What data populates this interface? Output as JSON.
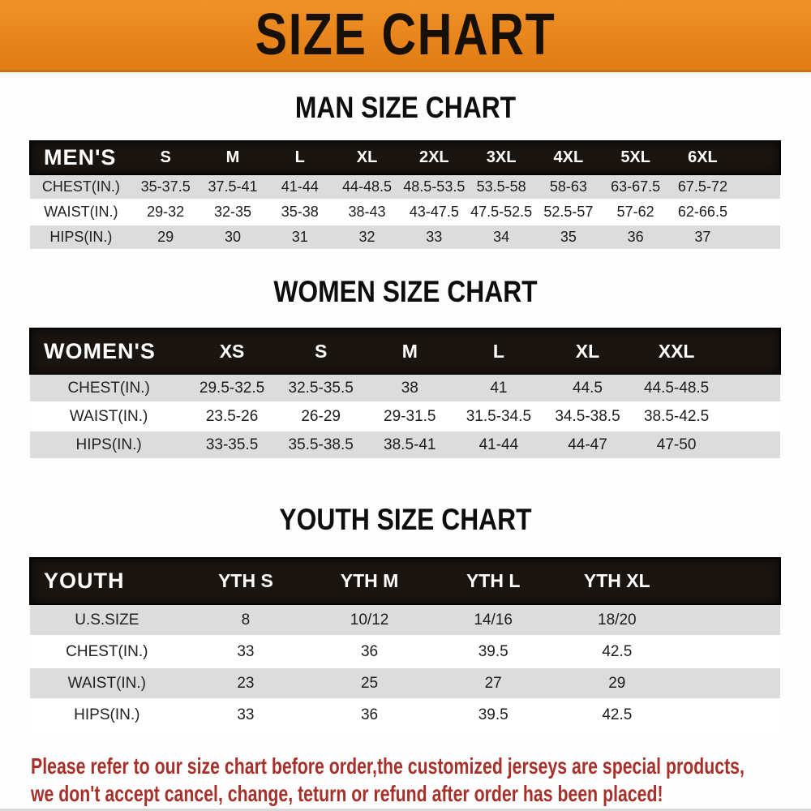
{
  "banner": {
    "title": "SIZE CHART",
    "bg_color": "#e8851c"
  },
  "colors": {
    "table_header_bg": "#1b1511",
    "row_stripe": "#dcdcdc",
    "disclaimer_text": "#a6302a"
  },
  "sections": [
    {
      "title": "MAN SIZE CHART",
      "header_label": "MEN'S",
      "columns": [
        "S",
        "M",
        "L",
        "XL",
        "2XL",
        "3XL",
        "4XL",
        "5XL",
        "6XL"
      ],
      "rows": [
        {
          "label": "CHEST(IN.)",
          "values": [
            "35-37.5",
            "37.5-41",
            "41-44",
            "44-48.5",
            "48.5-53.5",
            "53.5-58",
            "58-63",
            "63-67.5",
            "67.5-72"
          ]
        },
        {
          "label": "WAIST(IN.)",
          "values": [
            "29-32",
            "32-35",
            "35-38",
            "38-43",
            "43-47.5",
            "47.5-52.5",
            "52.5-57",
            "57-62",
            "62-66.5"
          ]
        },
        {
          "label": "HIPS(IN.)",
          "values": [
            "29",
            "30",
            "31",
            "32",
            "33",
            "34",
            "35",
            "36",
            "37"
          ]
        }
      ]
    },
    {
      "title": "WOMEN SIZE CHART",
      "header_label": "WOMEN'S",
      "columns": [
        "XS",
        "S",
        "M",
        "L",
        "XL",
        "XXL"
      ],
      "rows": [
        {
          "label": "CHEST(IN.)",
          "values": [
            "29.5-32.5",
            "32.5-35.5",
            "38",
            "41",
            "44.5",
            "44.5-48.5"
          ]
        },
        {
          "label": "WAIST(IN.)",
          "values": [
            "23.5-26",
            "26-29",
            "29-31.5",
            "31.5-34.5",
            "34.5-38.5",
            "38.5-42.5"
          ]
        },
        {
          "label": "HIPS(IN.)",
          "values": [
            "33-35.5",
            "35.5-38.5",
            "38.5-41",
            "41-44",
            "44-47",
            "47-50"
          ]
        }
      ]
    },
    {
      "title": "YOUTH SIZE CHART",
      "header_label": "YOUTH",
      "columns": [
        "YTH S",
        "YTH M",
        "YTH L",
        "YTH XL"
      ],
      "rows": [
        {
          "label": "U.S.SIZE",
          "values": [
            "8",
            "10/12",
            "14/16",
            "18/20"
          ]
        },
        {
          "label": "CHEST(IN.)",
          "values": [
            "33",
            "36",
            "39.5",
            "42.5"
          ]
        },
        {
          "label": "WAIST(IN.)",
          "values": [
            "23",
            "25",
            "27",
            "29"
          ]
        },
        {
          "label": "HIPS(IN.)",
          "values": [
            "33",
            "36",
            "39.5",
            "42.5"
          ]
        }
      ]
    }
  ],
  "disclaimer": {
    "line1": "Please refer to our size chart before order,the customized jerseys are special products,",
    "line2": "we don't accept cancel, change, teturn or refund after order has been placed!"
  }
}
